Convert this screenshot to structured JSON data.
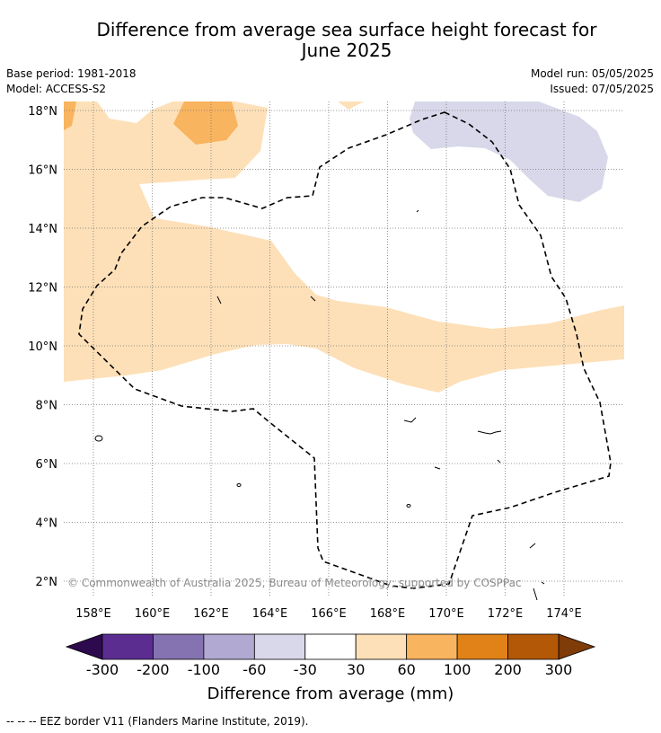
{
  "title_line1": "Difference from average sea surface height forecast for",
  "title_line2": "June 2025",
  "meta": {
    "base_period": "Base period: 1981-2018",
    "model": "Model: ACCESS-S2",
    "model_run": "Model run: 05/05/2025",
    "issued": "Issued: 07/05/2025"
  },
  "map": {
    "lat_labels": [
      "18°N",
      "16°N",
      "14°N",
      "12°N",
      "10°N",
      "8°N",
      "6°N",
      "4°N",
      "2°N"
    ],
    "lon_labels": [
      "158°E",
      "160°E",
      "162°E",
      "164°E",
      "166°E",
      "168°E",
      "170°E",
      "172°E",
      "174°E"
    ],
    "copyright": "© Commonwealth of Australia 2025, Bureau of Meteorology; supported by COSPPac"
  },
  "colorbar": {
    "title": "Difference from average (mm)",
    "labels": [
      "-300",
      "-200",
      "-100",
      "-60",
      "-30",
      "30",
      "60",
      "100",
      "200",
      "300"
    ],
    "colors": [
      "#2d0a4e",
      "#5c2d91",
      "#8473b0",
      "#b2a9d2",
      "#d8d8ea",
      "#ffffff",
      "#fde0b8",
      "#f8b45e",
      "#e08217",
      "#b35806",
      "#7f3b08"
    ]
  },
  "footer": "--  --  -- EEZ border V11 (Flanders Marine Institute, 2019)."
}
